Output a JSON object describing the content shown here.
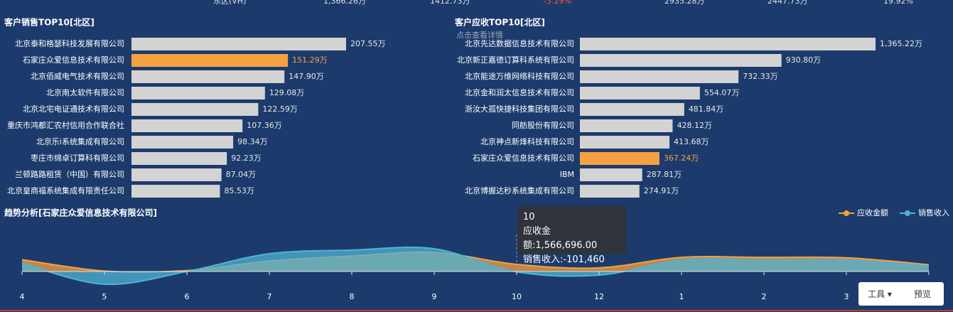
{
  "top_row": [
    "东区(VH)",
    "1,366.26万",
    "1412.73万",
    "-3.29%",
    "2935.28万",
    "2447.73万",
    "19.92%"
  ],
  "hint": "点击查看详情",
  "chart_data": [
    {
      "type": "hbar",
      "title": "客户销售TOP10[北区]",
      "categories": [
        "北京泰和格瑟科技发展有限公司",
        "石家庄众爱信息技术有限公司",
        "北京佰威电气技术有限公司",
        "北京南太软件有限公司",
        "北京北宅电证通技术有限公司",
        "重庆市鸿都汇农村信用合作联合社",
        "北京乐i系统集成有限公司",
        "枣庄市绵卓订算科有限公司",
        "兰顿路路租赁（中国）有限公司",
        "北京皇商福系统集成有限责任公司"
      ],
      "values": [
        207.55,
        151.29,
        147.9,
        129.08,
        122.59,
        107.36,
        98.34,
        92.23,
        87.04,
        85.53
      ],
      "value_labels": [
        "207.55万",
        "151.29万",
        "147.90万",
        "129.08万",
        "122.59万",
        "107.36万",
        "98.34万",
        "92.23万",
        "87.04万",
        "85.53万"
      ],
      "colors": [
        "#d3d3d3",
        "#f5a142",
        "#d3d3d3",
        "#d3d3d3",
        "#d3d3d3",
        "#d3d3d3",
        "#d3d3d3",
        "#d3d3d3",
        "#d3d3d3",
        "#d3d3d3"
      ]
    },
    {
      "type": "hbar",
      "title": "客户应收TOP10[北区]",
      "categories": [
        "北京先达数据信息技术有限公司",
        "北京新正嘉德订算科系统有限公司",
        "北京能途万维网络科技有限公司",
        "北京金和润太信息技术有限公司",
        "浙汝大孤快捷科技集团有限公司",
        "同舫股份有限公司",
        "北京神点新烽科技有限公司",
        "石家庄众爱信息技术有限公司",
        "IBM",
        "北京博握达秒系统集成有限公司"
      ],
      "values": [
        1365.22,
        930.8,
        732.33,
        554.07,
        481.84,
        428.12,
        413.68,
        367.24,
        287.81,
        274.91
      ],
      "value_labels": [
        "1,365.22万",
        "930.80万",
        "732.33万",
        "554.07万",
        "481.84万",
        "428.12万",
        "413.68万",
        "367.24万",
        "287.81万",
        "274.91万"
      ],
      "colors": [
        "#d3d3d3",
        "#d3d3d3",
        "#d3d3d3",
        "#d3d3d3",
        "#d3d3d3",
        "#d3d3d3",
        "#d3d3d3",
        "#f5a142",
        "#d3d3d3",
        "#d3d3d3"
      ]
    },
    {
      "type": "area",
      "title": "趋势分析[石家庄众爱信息技术有限公司]",
      "categories": [
        "4",
        "5",
        "6",
        "7",
        "8",
        "9",
        "10",
        "12",
        "1",
        "2",
        "3",
        null
      ],
      "series": [
        {
          "name": "应收金额",
          "color": "#f5a142",
          "values": [
            2600000,
            100000,
            200000,
            2300000,
            3400000,
            4200000,
            1566696,
            800000,
            3100000,
            3100000,
            3000000,
            1500000
          ]
        },
        {
          "name": "销售收入",
          "color": "#4fb3d4",
          "values": [
            1800000,
            -2800000,
            0,
            3900000,
            4700000,
            5000000,
            -101460,
            -800000,
            2500000,
            2500000,
            2500000,
            1200000
          ]
        }
      ],
      "legend": "top-right"
    }
  ],
  "tooltip": {
    "title": "10",
    "lines": [
      "应收金额:1,566,696.00",
      "销售收入:-101,460"
    ]
  },
  "toolbar": {
    "tools": "工具",
    "preview": "预览"
  }
}
